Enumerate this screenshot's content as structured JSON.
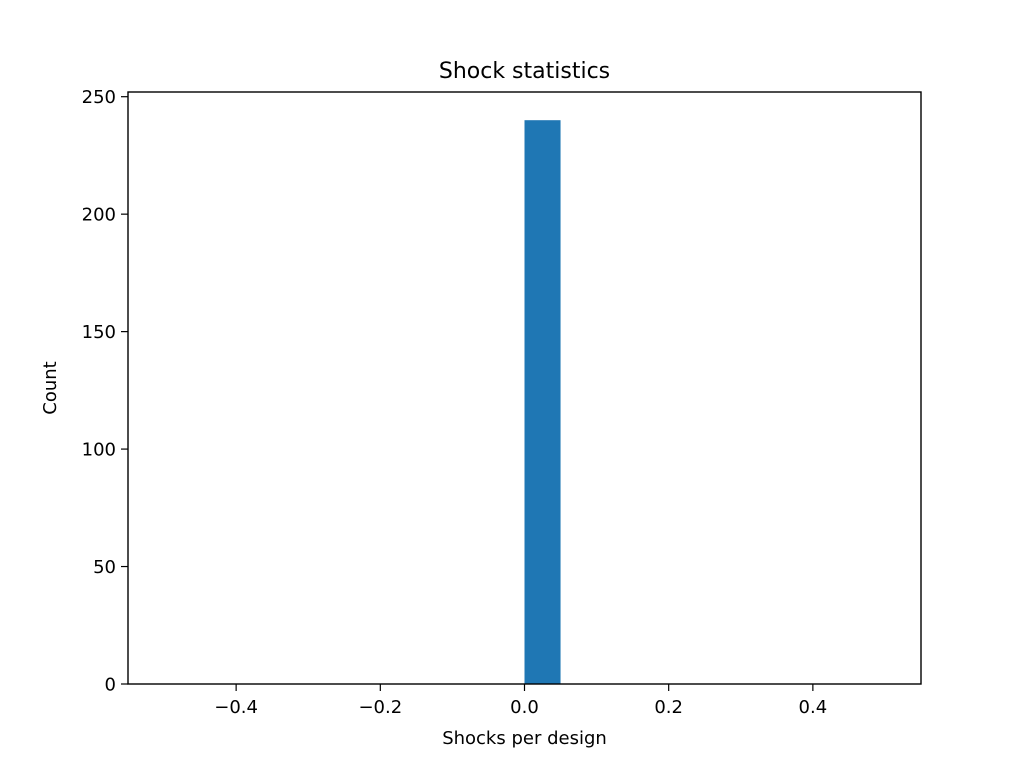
{
  "chart_data": {
    "type": "bar",
    "title": "Shock statistics",
    "xlabel": "Shocks per design",
    "ylabel": "Count",
    "xlim": [
      -0.55,
      0.55
    ],
    "ylim": [
      0,
      252
    ],
    "xticks": [
      {
        "value": -0.4,
        "label": "−0.4"
      },
      {
        "value": -0.2,
        "label": "−0.2"
      },
      {
        "value": 0.0,
        "label": "0.0"
      },
      {
        "value": 0.2,
        "label": "0.2"
      },
      {
        "value": 0.4,
        "label": "0.4"
      }
    ],
    "yticks": [
      {
        "value": 0,
        "label": "0"
      },
      {
        "value": 50,
        "label": "50"
      },
      {
        "value": 100,
        "label": "100"
      },
      {
        "value": 150,
        "label": "150"
      },
      {
        "value": 200,
        "label": "200"
      },
      {
        "value": 250,
        "label": "250"
      }
    ],
    "bins": [
      {
        "x0": 0.0,
        "x1": 0.05,
        "count": 240
      }
    ],
    "bar_color": "#1f77b4",
    "grid": false,
    "legend": "none"
  }
}
